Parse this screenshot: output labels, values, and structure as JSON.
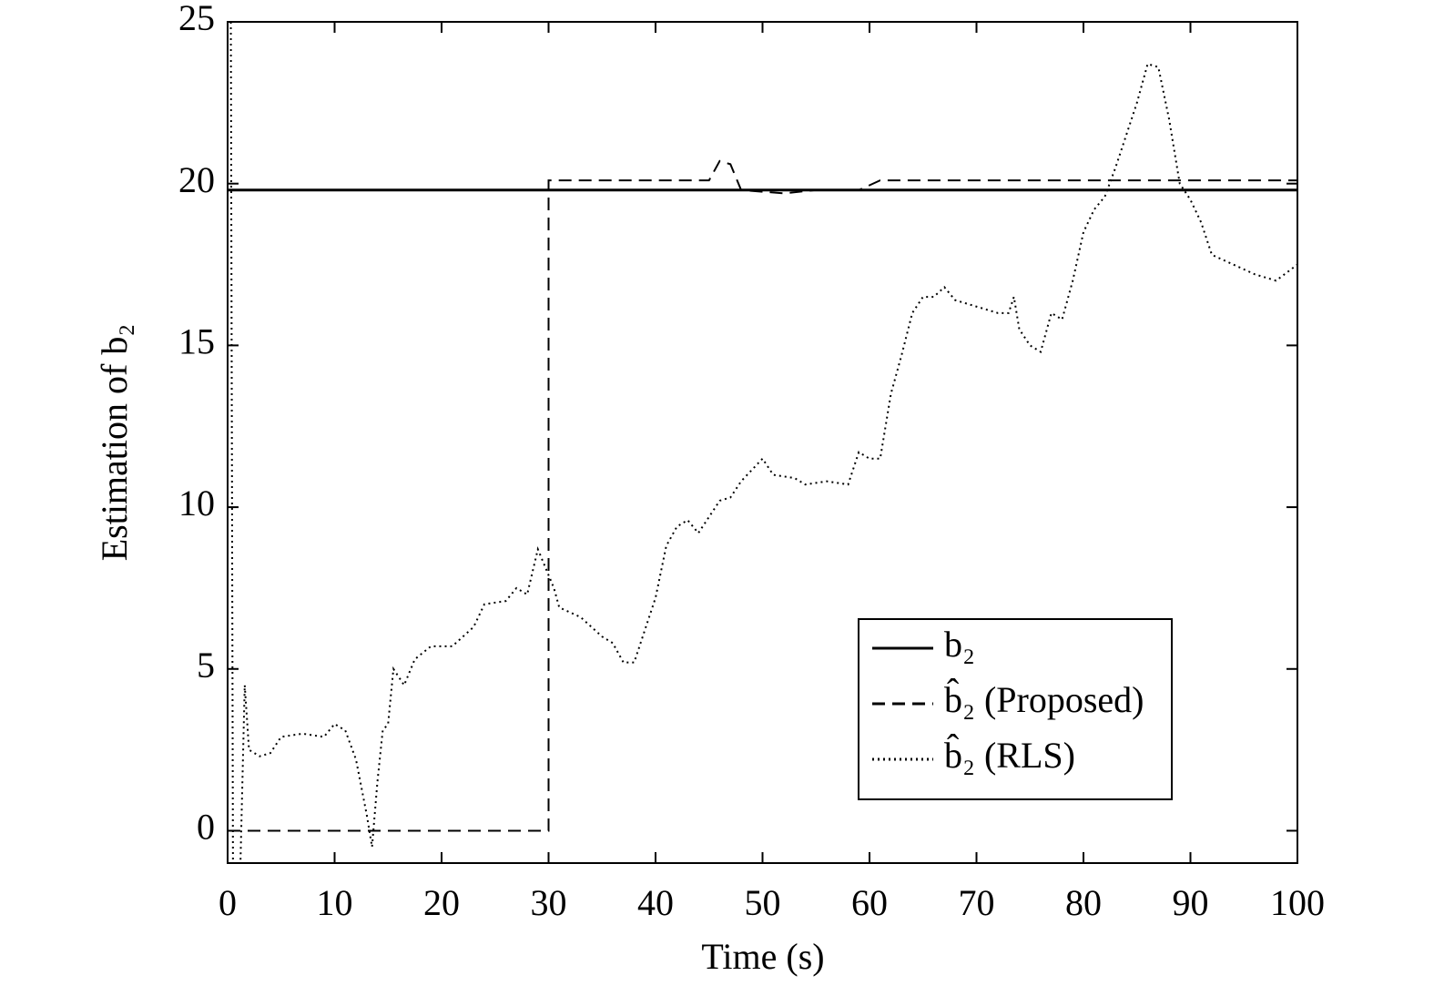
{
  "chart_data": {
    "type": "line",
    "xlabel": "Time (s)",
    "ylabel": "Estimation of b₂",
    "xlim": [
      0,
      100
    ],
    "xticks": [
      0,
      10,
      20,
      30,
      40,
      50,
      60,
      70,
      80,
      90,
      100
    ],
    "ylim": [
      -1,
      25
    ],
    "yticks": [
      0,
      5,
      10,
      15,
      20,
      25
    ],
    "legend": "lower right",
    "series": [
      {
        "name": "b₂",
        "color": "#000000",
        "style": "solid",
        "x": [
          0,
          100
        ],
        "values": [
          19.8,
          19.8
        ]
      },
      {
        "name": "b̂₂ (Proposed)",
        "color": "#000000",
        "style": "dashed",
        "x": [
          0,
          30,
          30,
          45,
          46,
          47,
          48,
          52,
          55,
          59,
          61,
          100
        ],
        "values": [
          0,
          0,
          20.1,
          20.1,
          20.7,
          20.6,
          19.8,
          19.7,
          19.8,
          19.8,
          20.1,
          20.1
        ]
      },
      {
        "name": "b̂₂ (RLS)",
        "color": "#000000",
        "style": "dotted",
        "x": [
          0.3,
          0.5,
          1.2,
          1.6,
          2,
          3,
          4,
          5,
          7,
          9,
          10,
          11,
          12,
          13,
          13.5,
          14,
          14.5,
          15,
          15.5,
          16.5,
          17.5,
          19,
          21,
          23,
          24,
          26,
          27,
          28,
          29,
          30.5,
          31,
          33,
          35,
          36,
          37,
          38,
          39,
          40,
          41,
          42,
          43,
          44,
          45,
          46,
          47,
          48,
          50,
          51,
          53,
          54,
          56,
          58,
          59,
          60,
          61,
          62,
          63,
          64,
          65,
          66,
          67,
          68,
          70,
          72,
          73,
          73.5,
          74,
          75,
          76,
          77,
          78,
          79,
          80,
          81,
          82,
          83,
          84,
          85,
          86,
          87,
          88,
          89,
          90,
          91,
          92,
          94,
          96,
          98,
          100
        ],
        "values": [
          25,
          -1,
          -1,
          4.5,
          2.5,
          2.3,
          2.4,
          2.9,
          3.0,
          2.9,
          3.3,
          3.1,
          2.2,
          0.5,
          -0.5,
          1.5,
          3.1,
          3.3,
          5.0,
          4.5,
          5.3,
          5.7,
          5.7,
          6.3,
          7.0,
          7.1,
          7.5,
          7.3,
          8.7,
          7.5,
          6.9,
          6.6,
          6.0,
          5.8,
          5.2,
          5.2,
          6.2,
          7.2,
          8.8,
          9.4,
          9.6,
          9.2,
          9.7,
          10.2,
          10.3,
          10.8,
          11.5,
          11.0,
          10.9,
          10.7,
          10.8,
          10.7,
          11.7,
          11.5,
          11.5,
          13.5,
          14.7,
          16.0,
          16.5,
          16.5,
          16.8,
          16.4,
          16.2,
          16.0,
          16.0,
          16.5,
          15.5,
          15.0,
          14.8,
          16.0,
          15.8,
          17.0,
          18.5,
          19.2,
          19.6,
          20.5,
          21.5,
          22.5,
          23.7,
          23.6,
          22.0,
          20.0,
          19.5,
          18.8,
          17.8,
          17.5,
          17.2,
          17.0,
          17.5
        ]
      }
    ]
  }
}
